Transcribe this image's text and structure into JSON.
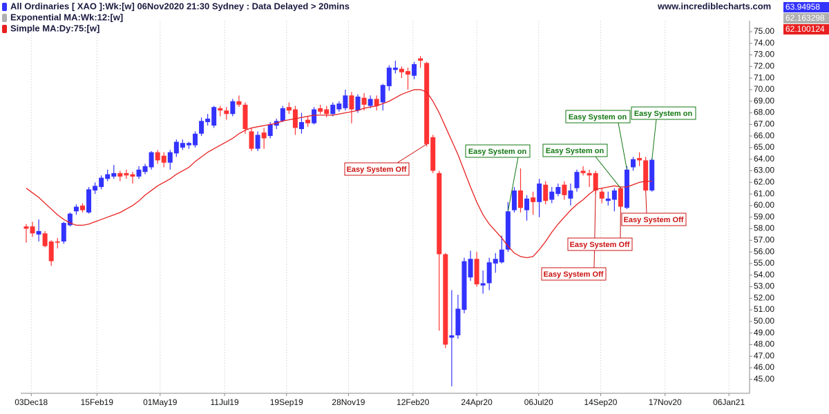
{
  "chart_data": {
    "type": "candlestick",
    "site": "www.incrediblecharts.com",
    "series": [
      {
        "name": "All Ordinaries [ XAO ]:Wk:[w]  06Nov2020 21:30 Sydney : Data Delayed > 20mins",
        "color": "#3333ff",
        "up_color": "#3333ff",
        "down_color": "#ff3333",
        "last_value": 63.94958,
        "open": [
          58.2,
          58.2,
          57.5,
          57.6,
          56.9,
          56.9,
          56.9,
          58.3,
          59.5,
          60.0,
          59.4,
          61.3,
          61.6,
          62.3,
          62.5,
          62.8,
          62.8,
          62.7,
          62.5,
          62.9,
          63.3,
          64.6,
          64.3,
          63.7,
          64.5,
          65.0,
          65.2,
          65.2,
          66.2,
          67.2,
          66.9,
          68.4,
          68.2,
          67.9,
          69.0,
          68.7,
          66.4,
          64.9,
          66.3,
          66.0,
          66.9,
          67.3,
          68.5,
          68.3,
          66.6,
          67.4,
          67.1,
          68.4,
          68.3,
          67.9,
          68.3,
          68.4,
          69.5,
          68.2,
          69.3,
          68.6,
          69.2,
          68.9,
          70.3,
          71.7,
          71.8,
          71.6,
          71.2,
          72.7,
          72.3,
          65.9,
          62.8,
          55.8,
          48.6,
          48.8,
          51.0,
          53.8,
          55.4,
          53.1,
          53.3,
          55.0,
          55.1,
          56.2,
          59.6,
          61.3,
          59.6,
          60.7,
          60.3,
          61.8,
          60.5,
          61.0,
          61.8,
          60.6,
          61.5,
          63.0,
          62.8,
          62.8,
          61.2,
          60.4,
          60.5,
          61.5,
          59.8,
          63.3,
          64.1,
          63.9,
          61.3
        ],
        "high": [
          58.4,
          58.6,
          58.8,
          57.8,
          57.0,
          57.2,
          58.6,
          59.4,
          60.1,
          60.2,
          61.6,
          62.0,
          62.6,
          63.1,
          63.5,
          63.0,
          63.1,
          62.9,
          63.4,
          63.6,
          64.7,
          64.8,
          64.6,
          64.8,
          65.7,
          65.7,
          65.5,
          66.4,
          67.6,
          67.9,
          68.6,
          68.6,
          68.5,
          69.2,
          69.5,
          68.9,
          66.7,
          66.4,
          66.7,
          67.2,
          67.5,
          68.6,
          68.9,
          68.6,
          68.0,
          67.7,
          68.5,
          68.7,
          68.6,
          68.9,
          69.0,
          70.0,
          69.8,
          69.6,
          69.7,
          69.5,
          69.5,
          70.5,
          72.1,
          72.5,
          72.0,
          71.9,
          72.4,
          72.9,
          72.4,
          66.1,
          63.0,
          55.9,
          52.7,
          52.3,
          55.5,
          56.1,
          56.0,
          54.4,
          55.5,
          55.9,
          57.4,
          60.3,
          61.6,
          63.2,
          60.9,
          61.2,
          62.3,
          62.1,
          61.6,
          61.9,
          62.1,
          61.9,
          63.1,
          63.4,
          63.1,
          63.0,
          61.5,
          61.2,
          61.5,
          61.6,
          63.4,
          64.2,
          64.6,
          64.2,
          64.1
        ],
        "low": [
          56.8,
          57.3,
          56.9,
          56.4,
          54.8,
          56.3,
          56.7,
          58.2,
          59.2,
          59.4,
          59.3,
          61.0,
          61.4,
          62.1,
          62.3,
          62.1,
          62.3,
          61.9,
          62.3,
          62.7,
          63.1,
          63.6,
          63.3,
          63.1,
          64.2,
          64.8,
          64.9,
          65.0,
          66.0,
          66.9,
          66.7,
          67.7,
          67.4,
          67.7,
          68.5,
          66.2,
          64.7,
          64.7,
          64.9,
          65.8,
          66.6,
          67.2,
          67.9,
          66.1,
          66.2,
          66.8,
          67.0,
          67.9,
          67.6,
          67.7,
          68.1,
          68.2,
          67.1,
          68.0,
          68.2,
          68.4,
          68.2,
          68.2,
          69.9,
          71.4,
          71.0,
          70.0,
          70.9,
          71.9,
          65.1,
          62.8,
          49.2,
          47.7,
          44.4,
          48.5,
          50.7,
          53.5,
          53.0,
          52.4,
          52.7,
          54.2,
          55.0,
          56.0,
          59.4,
          59.4,
          58.7,
          59.2,
          59.0,
          60.1,
          60.2,
          60.8,
          60.5,
          60.0,
          61.2,
          62.6,
          61.6,
          61.0,
          60.2,
          60.0,
          59.5,
          59.7,
          59.7,
          63.0,
          63.4,
          61.2,
          61.2
        ],
        "close": [
          58.0,
          57.6,
          57.8,
          56.5,
          55.2,
          56.8,
          58.5,
          59.3,
          59.9,
          59.6,
          61.4,
          61.7,
          62.4,
          62.7,
          62.8,
          62.5,
          62.6,
          62.5,
          63.1,
          63.4,
          64.6,
          63.9,
          63.7,
          64.6,
          65.5,
          65.4,
          65.4,
          66.2,
          67.3,
          67.5,
          68.5,
          68.2,
          67.9,
          69.0,
          68.7,
          66.6,
          64.9,
          66.1,
          65.8,
          67.0,
          67.3,
          68.4,
          68.2,
          66.7,
          67.2,
          67.1,
          68.3,
          68.1,
          67.9,
          68.7,
          68.8,
          69.5,
          68.3,
          69.4,
          68.7,
          69.2,
          68.6,
          70.4,
          71.9,
          71.9,
          71.5,
          71.3,
          72.2,
          72.5,
          65.3,
          63.0,
          55.8,
          48.0,
          48.8,
          51.1,
          55.2,
          55.4,
          53.2,
          53.3,
          55.1,
          55.4,
          56.2,
          59.5,
          61.3,
          59.8,
          60.6,
          60.3,
          61.9,
          60.4,
          61.2,
          61.6,
          60.9,
          61.3,
          62.9,
          62.8,
          62.6,
          61.3,
          60.6,
          60.6,
          61.3,
          59.9,
          63.1,
          64.0,
          63.9,
          61.3,
          63.94958
        ]
      },
      {
        "name": "Exponential MA:Wk:12:[w]",
        "color": "#b0b0b0",
        "last_value": 62.163298
      },
      {
        "name": "Simple MA:Dy:75:[w]",
        "color": "#e82020",
        "last_value": 62.100124,
        "values": [
          61.5,
          61.1,
          60.7,
          60.2,
          59.7,
          59.2,
          58.8,
          58.5,
          58.3,
          58.3,
          58.4,
          58.6,
          58.8,
          59.0,
          59.2,
          59.4,
          59.7,
          60.0,
          60.4,
          60.9,
          61.3,
          61.7,
          62.0,
          62.3,
          62.7,
          63.0,
          63.3,
          63.8,
          64.2,
          64.6,
          64.9,
          65.2,
          65.5,
          65.8,
          66.2,
          66.5,
          66.7,
          66.8,
          66.9,
          67.0,
          67.1,
          67.3,
          67.4,
          67.5,
          67.6,
          67.7,
          67.8,
          67.8,
          67.8,
          67.8,
          67.9,
          68.0,
          68.1,
          68.2,
          68.4,
          68.5,
          68.6,
          68.8,
          69.0,
          69.3,
          69.6,
          69.8,
          70.0,
          70.0,
          69.8,
          69.0,
          68.0,
          66.8,
          65.6,
          64.4,
          63.0,
          61.6,
          60.3,
          59.2,
          58.4,
          57.8,
          57.2,
          56.5,
          55.9,
          55.6,
          55.5,
          55.6,
          56.2,
          56.9,
          57.7,
          58.4,
          59.0,
          59.6,
          60.1,
          60.5,
          61.0,
          61.4,
          61.5,
          61.6,
          61.7,
          61.6,
          61.6,
          61.8,
          62.0,
          62.1,
          62.100124
        ]
      }
    ],
    "annotations": [
      {
        "text": "Easy System Off",
        "color": "#cc1111",
        "index": 64
      },
      {
        "text": "Easy System on",
        "color": "#117711",
        "index": 77
      },
      {
        "text": "Easy System on",
        "color": "#117711",
        "index": 95
      },
      {
        "text": "Easy System on",
        "color": "#117711",
        "index": 96
      },
      {
        "text": "Easy System on",
        "color": "#117711",
        "index": 100
      },
      {
        "text": "Easy System Off",
        "color": "#cc1111",
        "index": 91
      },
      {
        "text": "Easy System Off",
        "color": "#cc1111",
        "index": 95
      },
      {
        "text": "Easy System Off",
        "color": "#cc1111",
        "index": 99
      }
    ],
    "xlim": [
      -0.88,
      115.6
    ],
    "xticks": [
      {
        "value": 0.8,
        "label": "03Dec18"
      },
      {
        "value": 11.3,
        "label": "15Feb19"
      },
      {
        "value": 21.4,
        "label": "01May19"
      },
      {
        "value": 31.7,
        "label": "11Jul19"
      },
      {
        "value": 41.6,
        "label": "19Sep19"
      },
      {
        "value": 51.5,
        "label": "28Nov19"
      },
      {
        "value": 61.8,
        "label": "12Feb20"
      },
      {
        "value": 72.0,
        "label": "24Apr20"
      },
      {
        "value": 81.9,
        "label": "06Jul20"
      },
      {
        "value": 91.8,
        "label": "14Sep20"
      },
      {
        "value": 102.1,
        "label": "17Nov20"
      },
      {
        "value": 112.3,
        "label": "06Jan21"
      }
    ],
    "ylim": [
      43.8,
      75.95
    ],
    "yticks": [
      {
        "value": 45,
        "label": "45.00"
      },
      {
        "value": 46,
        "label": "46.00"
      },
      {
        "value": 47,
        "label": "47.00"
      },
      {
        "value": 48,
        "label": "48.00"
      },
      {
        "value": 49,
        "label": "49.00"
      },
      {
        "value": 50,
        "label": "50.00"
      },
      {
        "value": 51,
        "label": "51.00"
      },
      {
        "value": 52,
        "label": "52.00"
      },
      {
        "value": 53,
        "label": "53.00"
      },
      {
        "value": 54,
        "label": "54.00"
      },
      {
        "value": 55,
        "label": "55.00"
      },
      {
        "value": 56,
        "label": "56.00"
      },
      {
        "value": 57,
        "label": "57.00"
      },
      {
        "value": 58,
        "label": "58.00"
      },
      {
        "value": 59,
        "label": "59.00"
      },
      {
        "value": 60,
        "label": "60.00"
      },
      {
        "value": 61,
        "label": "61.00"
      },
      {
        "value": 62,
        "label": "62.00"
      },
      {
        "value": 63,
        "label": "63.00"
      },
      {
        "value": 64,
        "label": "64.00"
      },
      {
        "value": 65,
        "label": "65.00"
      },
      {
        "value": 66,
        "label": "66.00"
      },
      {
        "value": 67,
        "label": "67.00"
      },
      {
        "value": 68,
        "label": "68.00"
      },
      {
        "value": 69,
        "label": "69.00"
      },
      {
        "value": 70,
        "label": "70.00"
      },
      {
        "value": 71,
        "label": "71.00"
      },
      {
        "value": 72,
        "label": "72.00"
      },
      {
        "value": 73,
        "label": "73.00"
      },
      {
        "value": 74,
        "label": "74.00"
      },
      {
        "value": 75,
        "label": "75.00"
      }
    ],
    "grid": "x"
  }
}
